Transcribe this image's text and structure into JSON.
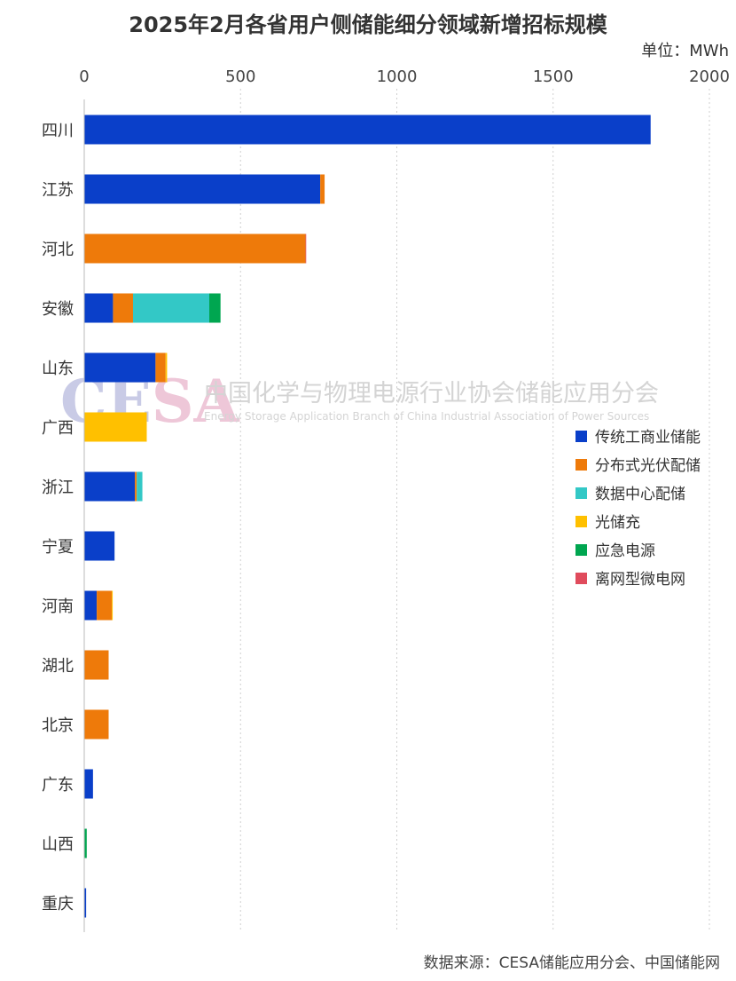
{
  "watermark": {
    "logo": "CESA",
    "cn": "中国化学与物理电源行业协会储能应用分会",
    "en": "Energy Storage Application Branch of China Industrial Association of Power Sources"
  },
  "source_note": "数据来源：CESA储能应用分会、中国储能网",
  "chart_data": {
    "type": "bar",
    "orientation": "horizontal",
    "stacked": true,
    "title": "2025年2月各省用户侧储能细分领域新增招标规模",
    "unit_label": "单位：MWh",
    "xlim": [
      0,
      2000
    ],
    "x_ticks": [
      0,
      500,
      1000,
      1500,
      2000
    ],
    "x_axis_position": "top",
    "grid": "vertical dotted",
    "legend_position": "right",
    "categories": [
      "四川",
      "江苏",
      "河北",
      "安徽",
      "山东",
      "广西",
      "浙江",
      "宁夏",
      "河南",
      "湖北",
      "北京",
      "广东",
      "山西",
      "重庆"
    ],
    "series": [
      {
        "name": "传统工商业储能",
        "color": "#0a3fc9",
        "values": [
          1812,
          755,
          0,
          92,
          228,
          0,
          162,
          97,
          40,
          0,
          0,
          28,
          0,
          6
        ]
      },
      {
        "name": "分布式光伏配储",
        "color": "#ee7a0a",
        "values": [
          0,
          14,
          708,
          64,
          32,
          0,
          6,
          0,
          48,
          78,
          78,
          0,
          0,
          0
        ]
      },
      {
        "name": "数据中心配储",
        "color": "#33c8c6",
        "values": [
          0,
          0,
          0,
          244,
          0,
          0,
          18,
          0,
          0,
          0,
          0,
          0,
          0,
          0
        ]
      },
      {
        "name": "光储充",
        "color": "#ffc000",
        "values": [
          0,
          0,
          0,
          0,
          5,
          200,
          0,
          0,
          3,
          0,
          0,
          0,
          0,
          0
        ]
      },
      {
        "name": "应急电源",
        "color": "#00a650",
        "values": [
          0,
          0,
          0,
          36,
          0,
          0,
          0,
          0,
          0,
          0,
          0,
          0,
          8,
          0
        ]
      },
      {
        "name": "离网型微电网",
        "color": "#e04b5c",
        "values": [
          0,
          0,
          2,
          0,
          0,
          0,
          0,
          0,
          0,
          0,
          0,
          0,
          0,
          0
        ]
      }
    ]
  }
}
